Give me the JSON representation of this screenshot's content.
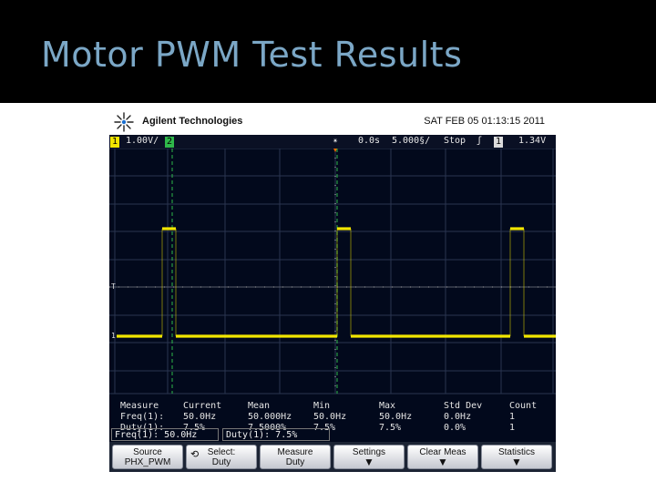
{
  "slide": {
    "title": "Motor PWM Test Results"
  },
  "scope": {
    "brand": "Agilent Technologies",
    "datetime": "SAT FEB 05 01:13:15 2011",
    "status": {
      "ch1": "1",
      "ch1_scale": "1.00V/",
      "ch2": "2",
      "trig_delay": "0.0s",
      "timebase": "5.000§/",
      "run_state": "Stop",
      "trig_slope": "ʃ",
      "trig_ch": "1",
      "trig_level": "1.34V"
    },
    "measurements": {
      "headers": [
        "Measure",
        "Current",
        "Mean",
        "Min",
        "Max",
        "Std Dev",
        "Count"
      ],
      "rows": [
        [
          "Freq(1):",
          "50.0Hz",
          "50.000Hz",
          "50.0Hz",
          "50.0Hz",
          "0.0Hz",
          "1"
        ],
        [
          "Duty(1):",
          "7.5%",
          "7.5000%",
          "7.5%",
          "7.5%",
          "0.0%",
          "1"
        ]
      ]
    },
    "readouts": [
      "Freq(1): 50.0Hz",
      "Duty(1): 7.5%"
    ],
    "softkeys": {
      "source": {
        "line1": "Source",
        "line2": "PHX_PWM"
      },
      "select": {
        "line1": "Select:",
        "line2": "Duty"
      },
      "measure": {
        "line1": "Measure",
        "line2": "Duty"
      },
      "settings": "Settings",
      "clear_meas": "Clear Meas",
      "statistics": "Statistics"
    },
    "colors": {
      "ch1": "#f2e600",
      "ch2": "#2fb84a",
      "screen": "#02091c",
      "title": "#7ba7c6"
    }
  }
}
